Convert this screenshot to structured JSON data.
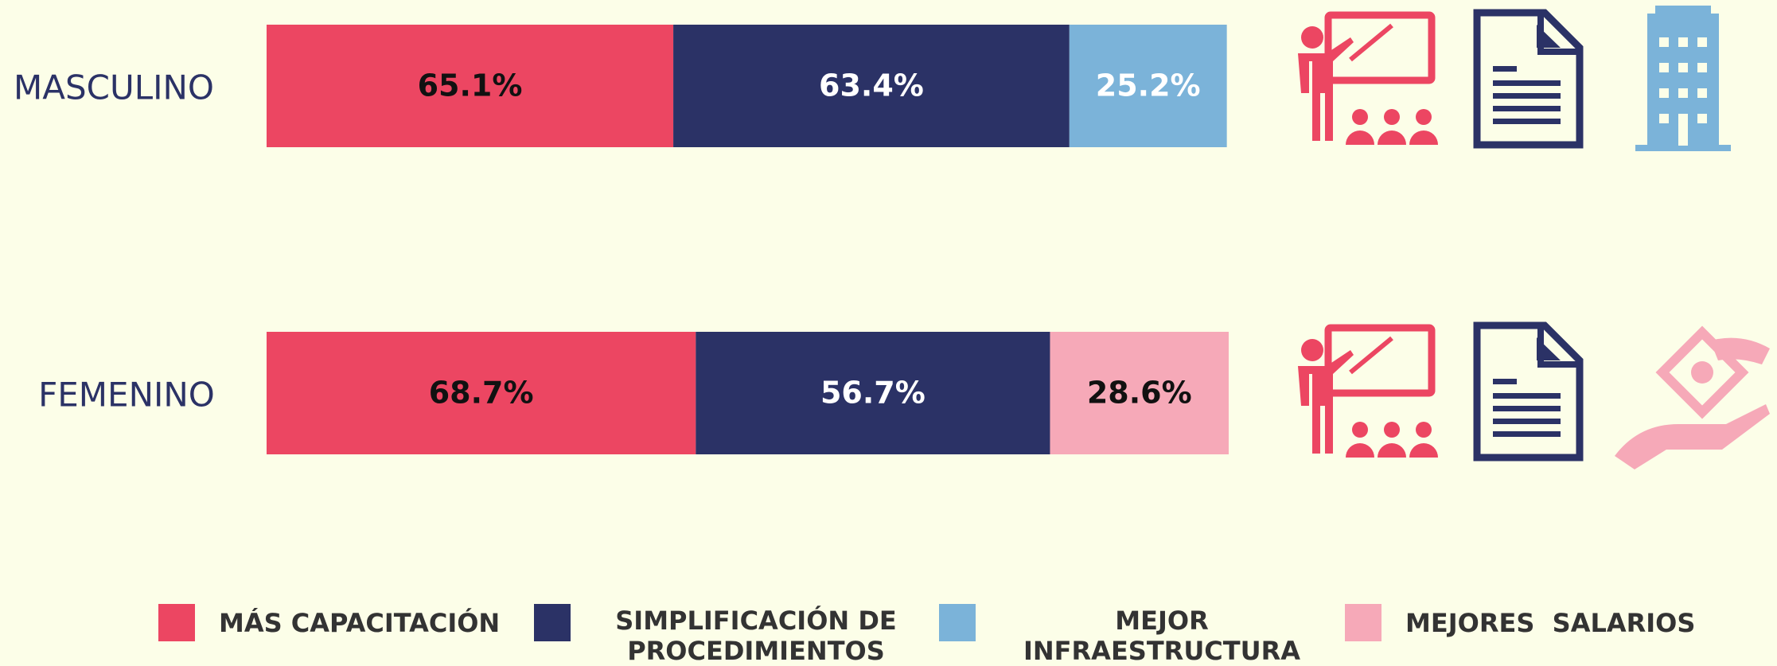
{
  "chart_data": {
    "type": "stacked-bar-horizontal",
    "categories": [
      "MASCULINO",
      "FEMENINO"
    ],
    "series": [
      {
        "name": "MÁS CAPACITACIÓN",
        "color": "#ec4662",
        "label_color": "#111111",
        "values": [
          65.1,
          68.7
        ],
        "value_labels": [
          "65.1%",
          "68.7%"
        ]
      },
      {
        "name": "SIMPLIFICACIÓN  DE PROCEDIMIENTOS",
        "color": "#2b3266",
        "label_color": "#ffffff",
        "values": [
          63.4,
          56.7
        ],
        "value_labels": [
          "63.4%",
          "56.7%"
        ]
      },
      {
        "name": "MEJOR INFRAESTRUCTURA",
        "color": "#7bb3d9",
        "label_color": "#ffffff",
        "values": [
          25.2,
          null
        ],
        "value_labels": [
          "25.2%",
          null
        ]
      },
      {
        "name": "MEJORES  SALARIOS",
        "color": "#f6a9b8",
        "label_color": "#111111",
        "values": [
          null,
          28.6
        ],
        "value_labels": [
          null,
          "28.6%"
        ]
      }
    ]
  }
}
